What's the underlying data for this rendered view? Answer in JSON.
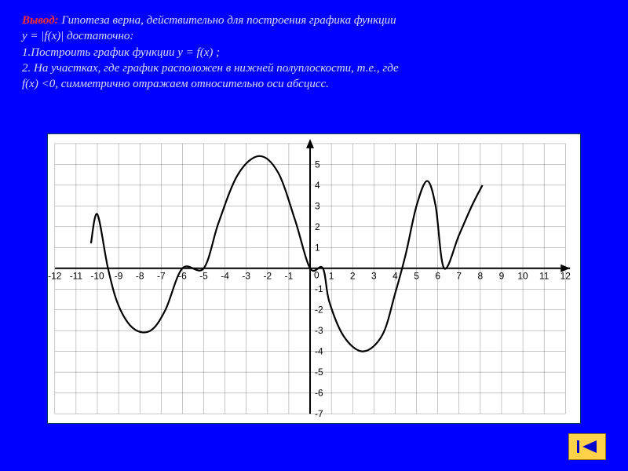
{
  "text": {
    "title_word": "Вывод:",
    "line1": " Гипотеза верна, действительно для построения графика функции",
    "line2": " y = |f(x)|  достаточно:",
    "line3": "1.Построить график функции y = f(x) ;",
    "line4": "2. На участках, где график расположен в нижней полуплоскости, т.е., где",
    "line5": "f(x) <0, симметрично отражаем относительно оси абсцисс."
  },
  "nav": {
    "icon": "back-first"
  },
  "chart": {
    "type": "line",
    "background_color": "#ffffff",
    "grid_color": "#000000",
    "grid_opacity": 0.55,
    "curve_color": "#000000",
    "curve_width": 2.2,
    "axis_color": "#000000",
    "label_fontsize": 12,
    "xlim": [
      -12,
      12
    ],
    "ylim": [
      -7,
      6
    ],
    "xtick_step": 1,
    "ytick_step": 1,
    "x_labels": [
      "-12",
      "-11",
      "-10",
      "-9",
      "-8",
      "-7",
      "-6",
      "-5",
      "-4",
      "-3",
      "-2",
      "-1",
      "0",
      "1",
      "2",
      "3",
      "4",
      "5",
      "6",
      "7",
      "8",
      "9",
      "10",
      "11",
      "12"
    ],
    "y_labels_pos": [
      "1",
      "2",
      "3",
      "4",
      "5"
    ],
    "y_labels_neg": [
      "-1",
      "-2",
      "-3",
      "-4",
      "-5",
      "-6",
      "-7"
    ],
    "curve_points": [
      [
        -10.3,
        1.2
      ],
      [
        -10.0,
        2.6
      ],
      [
        -9.5,
        0.0
      ],
      [
        -9.0,
        -1.8
      ],
      [
        -8.3,
        -2.9
      ],
      [
        -7.5,
        -3.0
      ],
      [
        -6.8,
        -2.0
      ],
      [
        -6.0,
        0.0
      ],
      [
        -5.0,
        0.0
      ],
      [
        -4.3,
        2.2
      ],
      [
        -3.4,
        4.5
      ],
      [
        -2.4,
        5.4
      ],
      [
        -1.5,
        4.6
      ],
      [
        -0.7,
        2.3
      ],
      [
        0.0,
        0.0
      ],
      [
        0.6,
        0.0
      ],
      [
        0.9,
        -1.6
      ],
      [
        1.6,
        -3.3
      ],
      [
        2.5,
        -4.0
      ],
      [
        3.4,
        -3.2
      ],
      [
        4.0,
        -1.2
      ],
      [
        4.5,
        0.7
      ],
      [
        5.0,
        3.0
      ],
      [
        5.5,
        4.2
      ],
      [
        5.9,
        3.0
      ],
      [
        6.3,
        0.0
      ],
      [
        7.0,
        1.6
      ],
      [
        7.6,
        3.0
      ],
      [
        8.1,
        4.0
      ]
    ]
  }
}
